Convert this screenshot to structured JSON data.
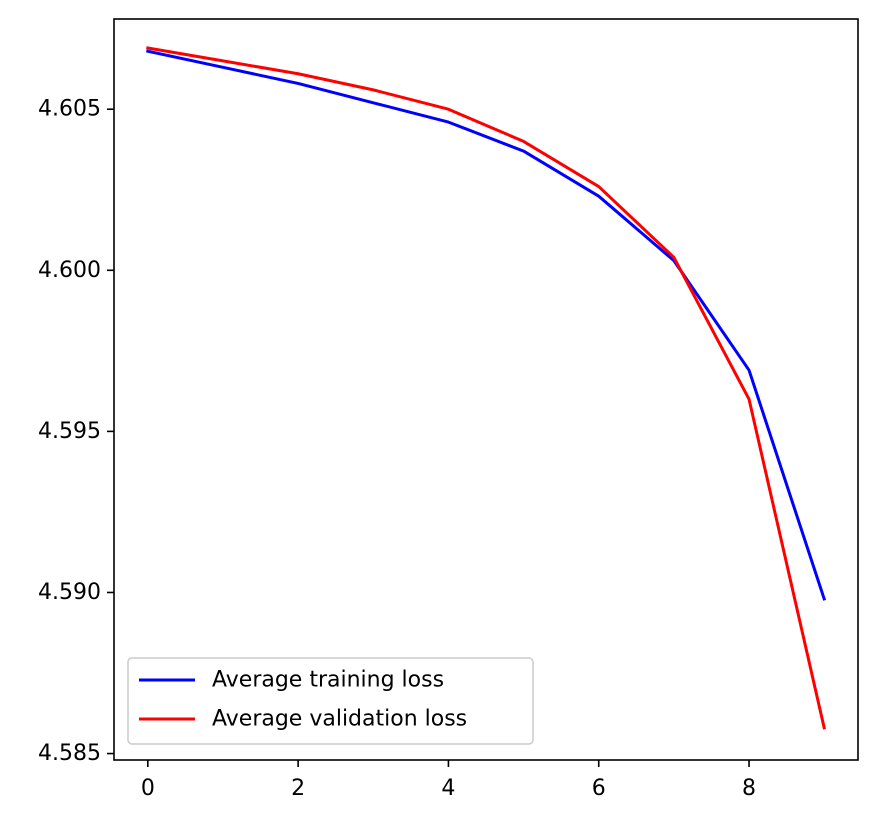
{
  "chart_data": {
    "type": "line",
    "title": "",
    "xlabel": "",
    "ylabel": "",
    "xlim": [
      -0.45,
      9.45
    ],
    "ylim": [
      4.5848,
      4.6078
    ],
    "grid": false,
    "legend_position": "lower-left",
    "x": [
      0,
      1,
      2,
      3,
      4,
      5,
      6,
      7,
      8,
      9
    ],
    "xticks": [
      0,
      2,
      4,
      6,
      8
    ],
    "xtick_labels": [
      "0",
      "2",
      "4",
      "6",
      "8"
    ],
    "yticks": [
      4.585,
      4.59,
      4.595,
      4.6,
      4.605
    ],
    "ytick_labels": [
      "4.585",
      "4.590",
      "4.595",
      "4.600",
      "4.605"
    ],
    "series": [
      {
        "name": "Average training loss",
        "color": "#0000ff",
        "values": [
          4.6068,
          4.6063,
          4.6058,
          4.6052,
          4.6046,
          4.6037,
          4.6023,
          4.6003,
          4.5969,
          4.5898
        ]
      },
      {
        "name": "Average validation loss",
        "color": "#ff0000",
        "values": [
          4.6069,
          4.6065,
          4.6061,
          4.6056,
          4.605,
          4.604,
          4.6026,
          4.6004,
          4.596,
          4.5858
        ]
      }
    ]
  }
}
